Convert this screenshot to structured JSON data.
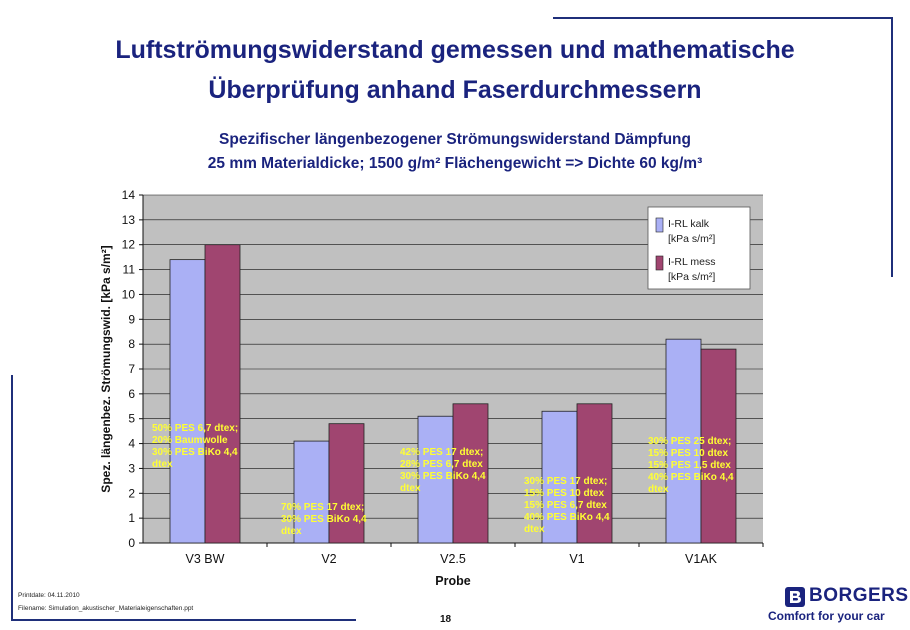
{
  "slide": {
    "title_line1": "Luftströmungswiderstand gemessen und mathematische",
    "title_line2": "Überprüfung anhand Faserdurchmessern",
    "printdate": "Printdate: 04.11.2010",
    "filename": "Filename: Simulation_akustischer_Materialeigenschaften.ppt",
    "page_number": "18",
    "logo_text": "BORGERS",
    "tagline": "Comfort for your car"
  },
  "chart_data": {
    "type": "bar",
    "title": "Spezifischer längenbezogener Strömungswiderstand Dämpfung",
    "subtitle": "25 mm Materialdicke; 1500 g/m² Flächengewicht => Dichte 60 kg/m³",
    "xlabel": "Probe",
    "ylabel": "Spez. längenbez. Strömungswid. [kPa s/m²]",
    "ylim": [
      0,
      14
    ],
    "yticks": [
      "0",
      "1",
      "2",
      "3",
      "4",
      "5",
      "6",
      "7",
      "8",
      "9",
      "10",
      "11",
      "12",
      "13",
      "14"
    ],
    "categories": [
      "V3 BW",
      "V2",
      "V2.5",
      "V1",
      "V1AK"
    ],
    "series": [
      {
        "name": "I-RL kalk",
        "unit": "[kPa s/m²]",
        "color": "#aab0f5",
        "values": [
          11.4,
          4.1,
          5.1,
          5.3,
          8.2
        ]
      },
      {
        "name": "I-RL mess",
        "unit": "[kPa s/m²]",
        "color": "#a04570",
        "values": [
          12.0,
          4.8,
          5.6,
          5.6,
          7.8
        ]
      }
    ],
    "grid": true,
    "legend_position": "top-right",
    "annotation_color": "#ffff33",
    "annotations": [
      [
        "50% PES 6,7 dtex;",
        "20% Baumwolle",
        "30% PES BiKo 4,4",
        "dtex"
      ],
      [
        "70% PES 17 dtex;",
        "30% PES BiKo 4,4",
        "dtex"
      ],
      [
        "42% PES 17 dtex;",
        "28% PES 6,7 dtex",
        "30% PES BiKo 4,4",
        "dtex"
      ],
      [
        "30% PES 17 dtex;",
        "15% PES 10 dtex",
        "15% PES 6,7 dtex",
        "40% PES BiKo 4,4",
        "dtex"
      ],
      [
        "30% PES 25 dtex;",
        "15% PES 10 dtex",
        "15% PES 1,5 dtex",
        "40% PES BiKo 4,4",
        "dtex"
      ]
    ]
  }
}
